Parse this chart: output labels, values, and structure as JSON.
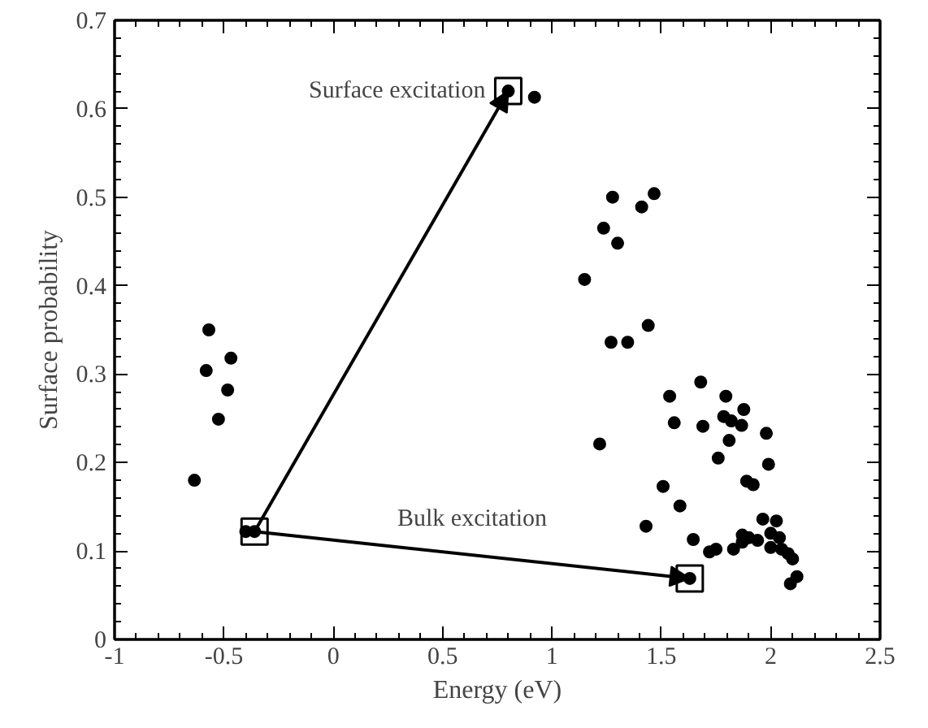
{
  "chart_data": {
    "type": "scatter",
    "xlabel": "Energy (eV)",
    "ylabel": "Surface probability",
    "xlim": [
      -1,
      2.5
    ],
    "ylim": [
      0,
      0.7
    ],
    "xticks": [
      -1,
      -0.5,
      0,
      0.5,
      1,
      1.5,
      2,
      2.5
    ],
    "yticks": [
      0,
      0.1,
      0.2,
      0.3,
      0.4,
      0.5,
      0.6,
      0.7
    ],
    "grid": false,
    "marker": "circle",
    "series": [
      {
        "color": "#000000",
        "x": [
          -0.36,
          -0.4,
          -0.569,
          -0.468,
          -0.581,
          -0.483,
          -0.525,
          -0.635,
          0.8,
          0.92,
          1.277,
          1.467,
          1.41,
          1.236,
          1.3,
          1.149,
          1.44,
          1.27,
          1.346,
          1.68,
          1.538,
          1.795,
          1.877,
          1.785,
          1.82,
          1.867,
          1.559,
          1.69,
          1.98,
          1.81,
          1.218,
          1.76,
          1.99,
          1.89,
          1.92,
          1.508,
          1.585,
          1.964,
          2.026,
          1.43,
          1.646,
          1.87,
          1.9,
          1.94,
          1.87,
          1.83,
          1.72,
          1.75,
          2.0,
          2.0,
          2.04,
          2.05,
          2.08,
          2.1,
          2.12,
          2.09,
          1.63
        ],
        "values": [
          0.122,
          0.122,
          0.35,
          0.318,
          0.304,
          0.282,
          0.249,
          0.18,
          0.62,
          0.613,
          0.5,
          0.504,
          0.489,
          0.465,
          0.448,
          0.407,
          0.355,
          0.336,
          0.336,
          0.291,
          0.275,
          0.275,
          0.26,
          0.252,
          0.247,
          0.242,
          0.245,
          0.241,
          0.233,
          0.225,
          0.221,
          0.205,
          0.198,
          0.179,
          0.175,
          0.173,
          0.151,
          0.136,
          0.134,
          0.128,
          0.113,
          0.118,
          0.115,
          0.112,
          0.11,
          0.102,
          0.099,
          0.102,
          0.12,
          0.104,
          0.115,
          0.102,
          0.097,
          0.091,
          0.071,
          0.063,
          0.069
        ]
      }
    ],
    "annotations": [
      {
        "text": "Surface excitation",
        "x": 0.8,
        "y": 0.62
      },
      "Bulk excitation"
    ]
  }
}
